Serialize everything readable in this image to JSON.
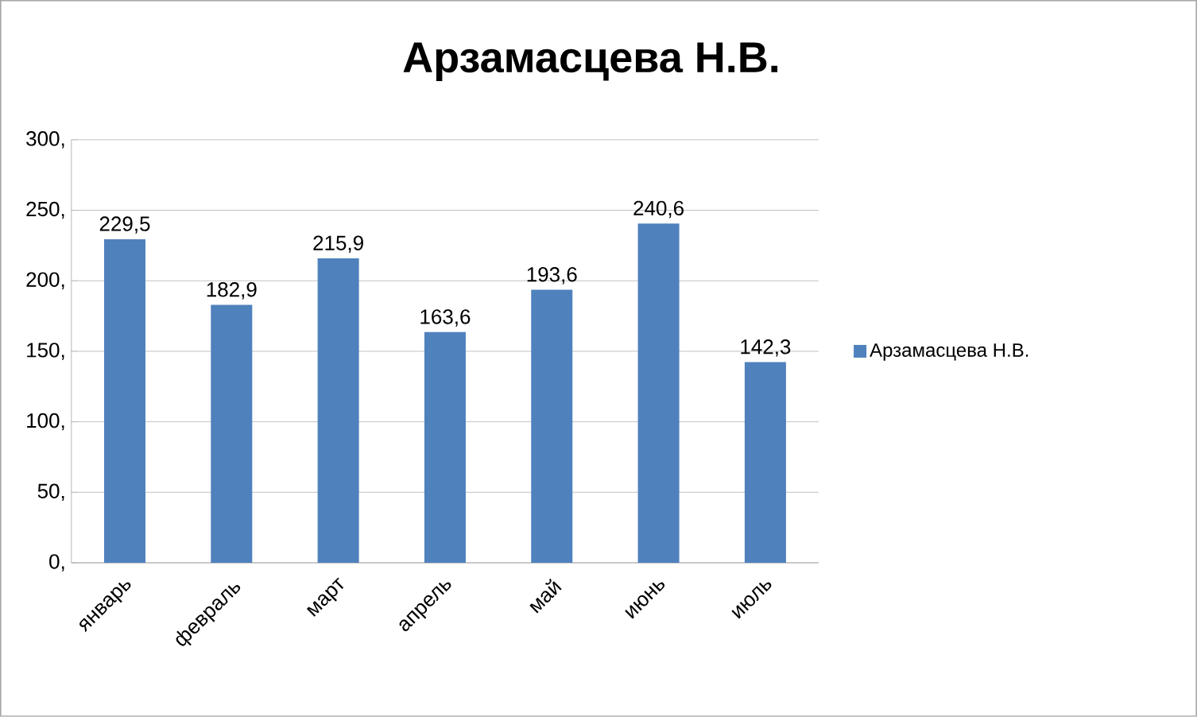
{
  "chart_data": {
    "type": "bar",
    "title": "Арзамасцева Н.В.",
    "categories": [
      "январь",
      "февраль",
      "март",
      "апрель",
      "май",
      "июнь",
      "июль"
    ],
    "series": [
      {
        "name": "Арзамасцева Н.В.",
        "color": "#4f81bd",
        "values": [
          229.5,
          182.9,
          215.9,
          163.6,
          193.6,
          240.6,
          142.3
        ],
        "value_labels": [
          "229,5",
          "182,9",
          "215,9",
          "163,6",
          "193,6",
          "240,6",
          "142,3"
        ]
      }
    ],
    "ylim": [
      0,
      300
    ],
    "yticks": [
      {
        "value": 0,
        "label": "0,"
      },
      {
        "value": 50,
        "label": "50,"
      },
      {
        "value": 100,
        "label": "100,"
      },
      {
        "value": 150,
        "label": "150,"
      },
      {
        "value": 200,
        "label": "200,"
      },
      {
        "value": 250,
        "label": "250,"
      },
      {
        "value": 300,
        "label": "300,"
      }
    ],
    "grid": "y",
    "legend": "right"
  }
}
